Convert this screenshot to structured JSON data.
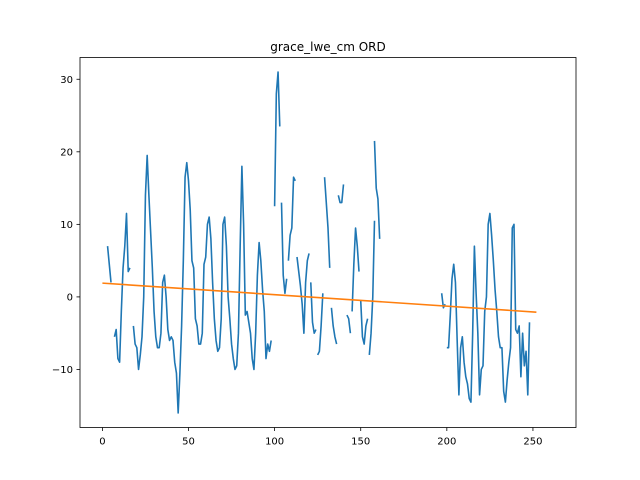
{
  "chart_data": {
    "type": "line",
    "title": "grace_lwe_cm ORD",
    "xlabel": "",
    "ylabel": "",
    "xlim": [
      -13,
      275
    ],
    "ylim": [
      -18,
      33
    ],
    "x_ticks": [
      0,
      50,
      100,
      150,
      200,
      250
    ],
    "y_ticks": [
      -10,
      0,
      10,
      20,
      30
    ],
    "grid": false,
    "legend": "none",
    "series": [
      {
        "color": "#1f77b4",
        "segments": [
          [
            [
              3,
              7
            ],
            [
              4,
              4.5
            ],
            [
              5,
              2
            ]
          ],
          [
            [
              7,
              -5.5
            ],
            [
              8,
              -4.5
            ],
            [
              9,
              -8.5
            ],
            [
              10,
              -9
            ],
            [
              11,
              -2
            ],
            [
              12,
              4
            ],
            [
              13,
              7
            ],
            [
              14,
              11.5
            ],
            [
              15,
              3.5
            ],
            [
              16,
              4
            ]
          ],
          [
            [
              18,
              -4
            ],
            [
              19,
              -6.5
            ],
            [
              20,
              -7
            ],
            [
              21,
              -10
            ],
            [
              22,
              -8
            ],
            [
              23,
              -5.5
            ],
            [
              24,
              0
            ],
            [
              25,
              14
            ],
            [
              26,
              19.5
            ],
            [
              27,
              14
            ],
            [
              28,
              9
            ],
            [
              29,
              4
            ],
            [
              30,
              -2
            ],
            [
              31,
              -5.5
            ],
            [
              32,
              -7
            ],
            [
              33,
              -7
            ],
            [
              34,
              -5
            ],
            [
              35,
              2
            ],
            [
              36,
              3
            ],
            [
              37,
              0
            ],
            [
              38,
              -4.5
            ],
            [
              39,
              -6
            ],
            [
              40,
              -5.5
            ],
            [
              41,
              -6
            ],
            [
              42,
              -9
            ],
            [
              43,
              -10.5
            ],
            [
              44,
              -16
            ],
            [
              45,
              -10.5
            ],
            [
              46,
              -4
            ],
            [
              47,
              5
            ],
            [
              48,
              16.5
            ],
            [
              49,
              18.5
            ],
            [
              50,
              16
            ],
            [
              51,
              12
            ],
            [
              52,
              5
            ],
            [
              53,
              4
            ],
            [
              54,
              -3
            ],
            [
              55,
              -4
            ],
            [
              56,
              -6.5
            ],
            [
              57,
              -6.5
            ],
            [
              58,
              -5
            ],
            [
              59,
              4.5
            ],
            [
              60,
              5.5
            ],
            [
              61,
              10
            ],
            [
              62,
              11
            ],
            [
              63,
              8
            ],
            [
              64,
              2
            ],
            [
              65,
              -3
            ],
            [
              66,
              -6
            ],
            [
              67,
              -7.5
            ],
            [
              68,
              -7
            ],
            [
              69,
              -3
            ],
            [
              70,
              10
            ],
            [
              71,
              11
            ],
            [
              72,
              7
            ],
            [
              73,
              0
            ],
            [
              74,
              -3
            ],
            [
              75,
              -6.5
            ],
            [
              76,
              -8.5
            ],
            [
              77,
              -10
            ],
            [
              78,
              -9.5
            ],
            [
              79,
              -5
            ],
            [
              80,
              7
            ],
            [
              81,
              18
            ],
            [
              82,
              10
            ],
            [
              83,
              -2.5
            ],
            [
              84,
              -2
            ],
            [
              85,
              -3.5
            ],
            [
              86,
              -5
            ],
            [
              87,
              -8.5
            ],
            [
              88,
              -10
            ],
            [
              89,
              -5
            ],
            [
              90,
              3
            ],
            [
              91,
              7.5
            ],
            [
              92,
              5
            ],
            [
              93,
              1
            ],
            [
              94,
              -2
            ],
            [
              95,
              -8.5
            ],
            [
              96,
              -6.5
            ],
            [
              97,
              -7.5
            ],
            [
              98,
              -6
            ]
          ],
          [
            [
              100,
              12.5
            ],
            [
              101,
              28
            ],
            [
              102,
              31
            ],
            [
              103,
              23.5
            ]
          ],
          [
            [
              104,
              13
            ],
            [
              105,
              3
            ],
            [
              106,
              0.5
            ],
            [
              107,
              2.5
            ]
          ],
          [
            [
              108,
              5
            ],
            [
              109,
              8.5
            ],
            [
              110,
              9.5
            ],
            [
              111,
              16.5
            ],
            [
              112,
              16
            ]
          ],
          [
            [
              113,
              5.5
            ],
            [
              114,
              3.5
            ],
            [
              115,
              1.5
            ],
            [
              116,
              -1
            ],
            [
              117,
              -5
            ],
            [
              118,
              2
            ],
            [
              119,
              5
            ],
            [
              120,
              6
            ]
          ],
          [
            [
              121,
              2
            ],
            [
              122,
              -3.5
            ],
            [
              123,
              -5
            ],
            [
              124,
              -4.5
            ]
          ],
          [
            [
              125,
              -8
            ],
            [
              126,
              -7.5
            ],
            [
              127,
              -4
            ],
            [
              128,
              0.5
            ]
          ],
          [
            [
              129,
              16.5
            ],
            [
              130,
              13
            ],
            [
              131,
              9.5
            ],
            [
              132,
              4
            ]
          ],
          [
            [
              133,
              -1.5
            ],
            [
              134,
              -4
            ],
            [
              135,
              -5.5
            ],
            [
              136,
              -6.5
            ]
          ],
          [
            [
              137,
              14
            ],
            [
              138,
              13
            ],
            [
              139,
              13
            ],
            [
              140,
              15.5
            ]
          ],
          [
            [
              142,
              -2.5
            ],
            [
              143,
              -3
            ],
            [
              144,
              -5
            ]
          ],
          [
            [
              145,
              -2
            ],
            [
              146,
              4.5
            ],
            [
              147,
              9.5
            ],
            [
              148,
              7
            ],
            [
              149,
              3.5
            ]
          ],
          [
            [
              150,
              -0.5
            ],
            [
              151,
              -5.5
            ],
            [
              152,
              -6.5
            ],
            [
              153,
              -4
            ],
            [
              154,
              -3
            ]
          ],
          [
            [
              155,
              -8
            ],
            [
              156,
              -5
            ],
            [
              157,
              0
            ],
            [
              158,
              10.5
            ]
          ],
          [
            [
              158,
              21.5
            ],
            [
              159,
              15
            ],
            [
              160,
              13.5
            ],
            [
              161,
              8
            ]
          ],
          [
            [
              197,
              0.5
            ],
            [
              198,
              -1.5
            ],
            [
              199,
              -1
            ]
          ],
          [
            [
              200,
              -7
            ],
            [
              201,
              -7
            ],
            [
              202,
              -2.5
            ],
            [
              203,
              2.5
            ],
            [
              204,
              4.5
            ],
            [
              205,
              2
            ],
            [
              206,
              -6
            ],
            [
              207,
              -13.5
            ],
            [
              208,
              -7
            ],
            [
              209,
              -5.5
            ],
            [
              210,
              -9
            ],
            [
              211,
              -11
            ],
            [
              212,
              -12
            ],
            [
              213,
              -14
            ],
            [
              214,
              -14.5
            ],
            [
              215,
              -5
            ],
            [
              216,
              7
            ],
            [
              217,
              0.5
            ],
            [
              218,
              -5
            ],
            [
              219,
              -13.5
            ],
            [
              220,
              -10
            ],
            [
              221,
              -9.5
            ],
            [
              222,
              -2
            ],
            [
              223,
              0
            ],
            [
              224,
              10
            ],
            [
              225,
              11.5
            ],
            [
              226,
              8.5
            ],
            [
              227,
              5
            ],
            [
              228,
              1
            ],
            [
              229,
              -2
            ],
            [
              230,
              -5.5
            ],
            [
              231,
              -7
            ],
            [
              232,
              -7
            ],
            [
              233,
              -13
            ],
            [
              234,
              -14.5
            ],
            [
              235,
              -11.5
            ],
            [
              236,
              -9
            ],
            [
              237,
              -7
            ],
            [
              238,
              9.5
            ],
            [
              239,
              10
            ],
            [
              240,
              -4.5
            ],
            [
              241,
              -5
            ],
            [
              242,
              -4
            ],
            [
              243,
              -11
            ],
            [
              244,
              -5
            ],
            [
              245,
              -9.5
            ],
            [
              246,
              -7.5
            ],
            [
              247,
              -13.5
            ],
            [
              248,
              -3.5
            ]
          ]
        ]
      },
      {
        "color": "#ff7f0e",
        "segments": [
          [
            [
              0,
              1.9
            ],
            [
              252,
              -2.1
            ]
          ]
        ]
      }
    ]
  }
}
